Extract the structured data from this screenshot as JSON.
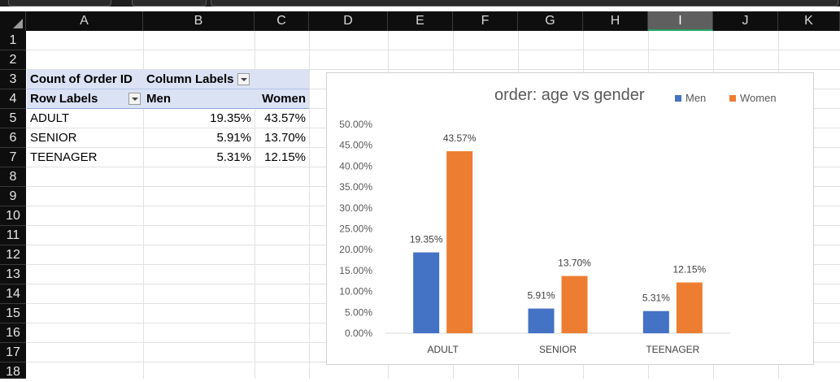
{
  "columns": [
    "A",
    "B",
    "C",
    "D",
    "E",
    "F",
    "G",
    "H",
    "I",
    "J",
    "K"
  ],
  "selected_column": "I",
  "rows": [
    "1",
    "2",
    "3",
    "4",
    "5",
    "6",
    "7",
    "8",
    "9",
    "10",
    "11",
    "12",
    "13",
    "14",
    "15",
    "16",
    "17",
    "18"
  ],
  "pivot": {
    "header_value": "Count of Order ID",
    "column_labels": "Column Labels",
    "row_labels": "Row Labels",
    "col_men": "Men",
    "col_women": "Women",
    "rows": [
      {
        "label": "ADULT",
        "men": "19.35%",
        "women": "43.57%"
      },
      {
        "label": "SENIOR",
        "men": "5.91%",
        "women": "13.70%"
      },
      {
        "label": "TEENAGER",
        "men": "5.31%",
        "women": "12.15%"
      }
    ]
  },
  "chart_data": {
    "type": "bar",
    "title": "order: age vs gender",
    "categories": [
      "ADULT",
      "SENIOR",
      "TEENAGER"
    ],
    "series": [
      {
        "name": "Men",
        "values": [
          19.35,
          5.91,
          5.31
        ],
        "labels": [
          "19.35%",
          "5.91%",
          "5.31%"
        ],
        "color": "#4472c4"
      },
      {
        "name": "Women",
        "values": [
          43.57,
          13.7,
          12.15
        ],
        "labels": [
          "43.57%",
          "13.70%",
          "12.15%"
        ],
        "color": "#ed7d31"
      }
    ],
    "yticks": [
      "0.00%",
      "5.00%",
      "10.00%",
      "15.00%",
      "20.00%",
      "25.00%",
      "30.00%",
      "35.00%",
      "40.00%",
      "45.00%",
      "50.00%"
    ],
    "ylim": [
      0,
      50
    ],
    "legend": "top-right",
    "grid": false
  }
}
